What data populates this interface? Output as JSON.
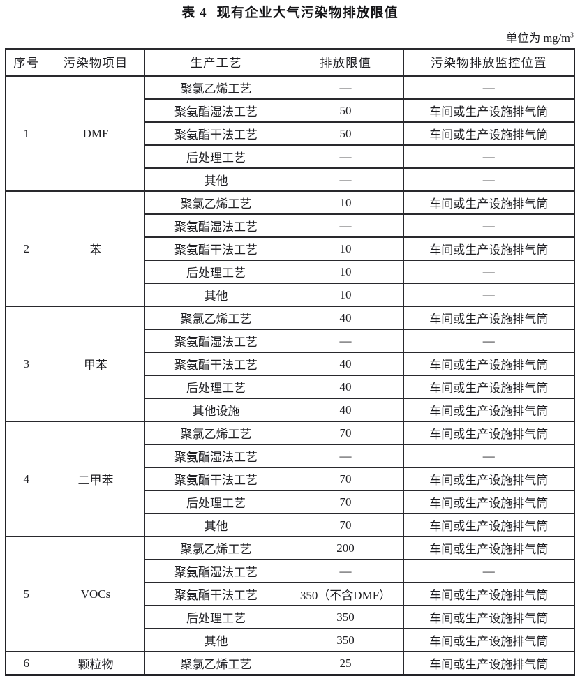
{
  "title": {
    "prefix": "表 4",
    "text": "现有企业大气污染物排放限值"
  },
  "unit": {
    "label": "单位为 mg/m",
    "superscript": "3"
  },
  "table": {
    "headers": [
      "序号",
      "污染物项目",
      "生产工艺",
      "排放限值",
      "污染物排放监控位置"
    ],
    "groups": [
      {
        "no": "1",
        "pollutant": "DMF",
        "rows": [
          {
            "process": "聚氯乙烯工艺",
            "limit": "—",
            "location": "—"
          },
          {
            "process": "聚氨酯湿法工艺",
            "limit": "50",
            "location": "车间或生产设施排气筒"
          },
          {
            "process": "聚氨酯干法工艺",
            "limit": "50",
            "location": "车间或生产设施排气筒"
          },
          {
            "process": "后处理工艺",
            "limit": "—",
            "location": "—"
          },
          {
            "process": "其他",
            "limit": "—",
            "location": "—"
          }
        ]
      },
      {
        "no": "2",
        "pollutant": "苯",
        "rows": [
          {
            "process": "聚氯乙烯工艺",
            "limit": "10",
            "location": "车间或生产设施排气筒"
          },
          {
            "process": "聚氨酯湿法工艺",
            "limit": "—",
            "location": "—"
          },
          {
            "process": "聚氨酯干法工艺",
            "limit": "10",
            "location": "车间或生产设施排气筒"
          },
          {
            "process": "后处理工艺",
            "limit": "10",
            "location": "—"
          },
          {
            "process": "其他",
            "limit": "10",
            "location": "—"
          }
        ]
      },
      {
        "no": "3",
        "pollutant": "甲苯",
        "rows": [
          {
            "process": "聚氯乙烯工艺",
            "limit": "40",
            "location": "车间或生产设施排气筒"
          },
          {
            "process": "聚氨酯湿法工艺",
            "limit": "—",
            "location": "—"
          },
          {
            "process": "聚氨酯干法工艺",
            "limit": "40",
            "location": "车间或生产设施排气筒"
          },
          {
            "process": "后处理工艺",
            "limit": "40",
            "location": "车间或生产设施排气筒"
          },
          {
            "process": "其他设施",
            "limit": "40",
            "location": "车间或生产设施排气筒"
          }
        ]
      },
      {
        "no": "4",
        "pollutant": "二甲苯",
        "rows": [
          {
            "process": "聚氯乙烯工艺",
            "limit": "70",
            "location": "车间或生产设施排气筒"
          },
          {
            "process": "聚氨酯湿法工艺",
            "limit": "—",
            "location": "—"
          },
          {
            "process": "聚氨酯干法工艺",
            "limit": "70",
            "location": "车间或生产设施排气筒"
          },
          {
            "process": "后处理工艺",
            "limit": "70",
            "location": "车间或生产设施排气筒"
          },
          {
            "process": "其他",
            "limit": "70",
            "location": "车间或生产设施排气筒"
          }
        ]
      },
      {
        "no": "5",
        "pollutant": "VOCs",
        "rows": [
          {
            "process": "聚氯乙烯工艺",
            "limit": "200",
            "location": "车间或生产设施排气筒"
          },
          {
            "process": "聚氨酯湿法工艺",
            "limit": "—",
            "location": "—"
          },
          {
            "process": "聚氨酯干法工艺",
            "limit": "350（不含DMF）",
            "location": "车间或生产设施排气筒"
          },
          {
            "process": "后处理工艺",
            "limit": "350",
            "location": "车间或生产设施排气筒"
          },
          {
            "process": "其他",
            "limit": "350",
            "location": "车间或生产设施排气筒"
          }
        ]
      },
      {
        "no": "6",
        "pollutant": "颗粒物",
        "rows": [
          {
            "process": "聚氯乙烯工艺",
            "limit": "25",
            "location": "车间或生产设施排气筒"
          }
        ]
      }
    ]
  }
}
